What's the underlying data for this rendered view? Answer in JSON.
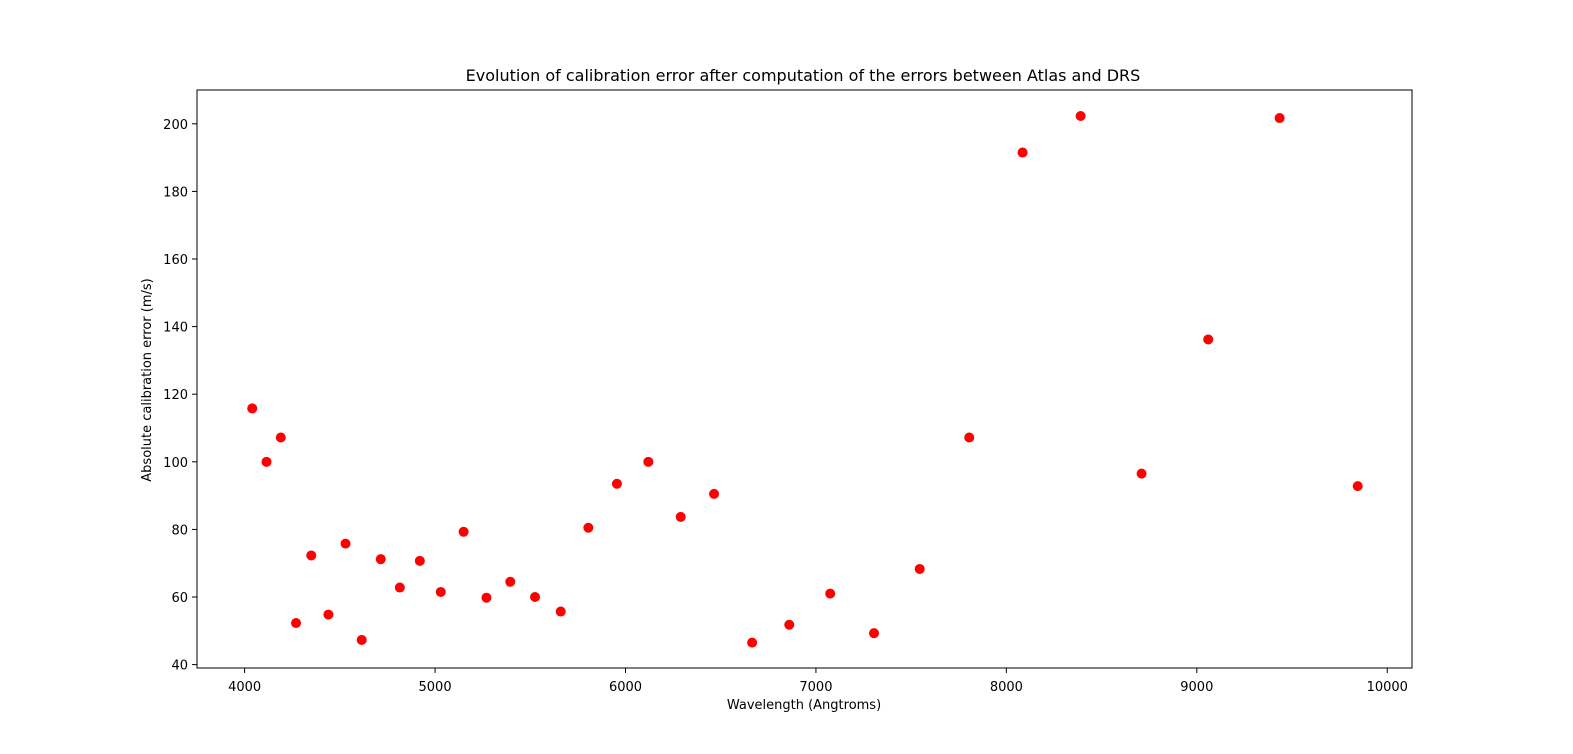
{
  "chart_data": {
    "type": "scatter",
    "title": "Evolution of calibration error after computation of the errors between Atlas and DRS",
    "xlabel": "Wavelength (Angtroms)",
    "ylabel": "Absolute calibration error (m/s)",
    "xlim": [
      3750,
      10130
    ],
    "ylim": [
      39,
      210
    ],
    "xticks": [
      4000,
      5000,
      6000,
      7000,
      8000,
      9000,
      10000
    ],
    "yticks": [
      40,
      60,
      80,
      100,
      120,
      140,
      160,
      180,
      200
    ],
    "grid": false,
    "marker_color": "#ff0000",
    "points": [
      {
        "x": 4040,
        "y": 115.8
      },
      {
        "x": 4115,
        "y": 100.0
      },
      {
        "x": 4190,
        "y": 107.2
      },
      {
        "x": 4270,
        "y": 52.3
      },
      {
        "x": 4350,
        "y": 72.3
      },
      {
        "x": 4440,
        "y": 54.8
      },
      {
        "x": 4530,
        "y": 75.8
      },
      {
        "x": 4615,
        "y": 47.3
      },
      {
        "x": 4715,
        "y": 71.2
      },
      {
        "x": 4815,
        "y": 62.8
      },
      {
        "x": 4920,
        "y": 70.7
      },
      {
        "x": 5030,
        "y": 61.5
      },
      {
        "x": 5150,
        "y": 79.3
      },
      {
        "x": 5270,
        "y": 59.8
      },
      {
        "x": 5395,
        "y": 64.5
      },
      {
        "x": 5525,
        "y": 60.0
      },
      {
        "x": 5660,
        "y": 55.7
      },
      {
        "x": 5805,
        "y": 80.5
      },
      {
        "x": 5955,
        "y": 93.5
      },
      {
        "x": 6120,
        "y": 100.0
      },
      {
        "x": 6290,
        "y": 83.7
      },
      {
        "x": 6465,
        "y": 90.5
      },
      {
        "x": 6665,
        "y": 46.5
      },
      {
        "x": 6860,
        "y": 51.8
      },
      {
        "x": 7075,
        "y": 61.0
      },
      {
        "x": 7305,
        "y": 49.3
      },
      {
        "x": 7545,
        "y": 68.3
      },
      {
        "x": 7805,
        "y": 107.2
      },
      {
        "x": 8085,
        "y": 191.5
      },
      {
        "x": 8390,
        "y": 202.3
      },
      {
        "x": 8710,
        "y": 96.5
      },
      {
        "x": 9060,
        "y": 136.2
      },
      {
        "x": 9435,
        "y": 201.7
      },
      {
        "x": 9845,
        "y": 92.8
      }
    ]
  }
}
